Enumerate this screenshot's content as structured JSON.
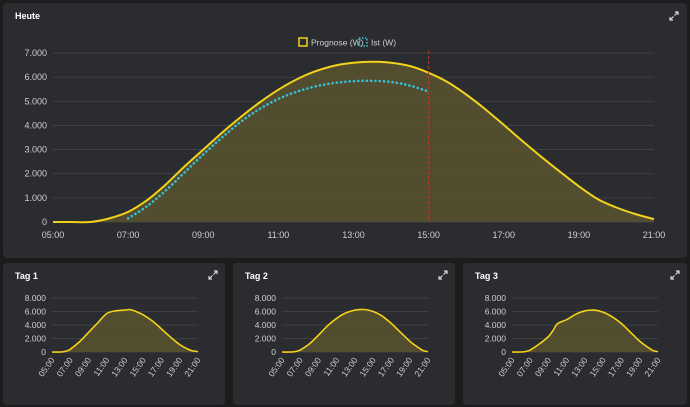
{
  "colors": {
    "background": "#1c1c1c",
    "card": "#2b2c2f",
    "forecast": "#f3d21b",
    "forecast_fill": "#5a5430",
    "actual": "#35c2d8",
    "now_line": "#c0392b",
    "grid": "#454649",
    "text": "#cfcfcf"
  },
  "icons": {
    "expand": "expand-arrows-icon"
  },
  "main": {
    "title": "Heute",
    "legend": [
      "Prognose (W)",
      "Ist (W)"
    ]
  },
  "small_cards": [
    {
      "title": "Tag 1"
    },
    {
      "title": "Tag 2"
    },
    {
      "title": "Tag 3"
    }
  ],
  "chart_data": [
    {
      "type": "area",
      "title": "Heute",
      "x_unit": "hour",
      "xlim": [
        5,
        21
      ],
      "x_ticks": [
        "05:00",
        "07:00",
        "09:00",
        "11:00",
        "13:00",
        "15:00",
        "17:00",
        "19:00",
        "21:00"
      ],
      "ylim": [
        0,
        7000
      ],
      "y_ticks": [
        "0",
        "1.000",
        "2.000",
        "3.000",
        "4.000",
        "5.000",
        "6.000",
        "7.000"
      ],
      "grid": true,
      "legend_position": "top-center",
      "now_marker": 15,
      "series": [
        {
          "name": "Prognose (W)",
          "style": "line-fill",
          "x": [
            5,
            5.5,
            6,
            6.5,
            7,
            7.5,
            8,
            8.5,
            9,
            9.5,
            10,
            10.5,
            11,
            11.5,
            12,
            12.5,
            13,
            13.5,
            14,
            14.5,
            15,
            15.5,
            16,
            16.5,
            17,
            17.5,
            18,
            18.5,
            19,
            19.5,
            20,
            20.5,
            21
          ],
          "y": [
            0,
            0,
            0,
            150,
            420,
            900,
            1550,
            2300,
            3000,
            3700,
            4350,
            4950,
            5480,
            5920,
            6250,
            6480,
            6600,
            6640,
            6600,
            6460,
            6180,
            5800,
            5280,
            4680,
            4020,
            3350,
            2700,
            2080,
            1480,
            950,
            600,
            330,
            120
          ]
        },
        {
          "name": "Ist (W)",
          "style": "dotted",
          "x": [
            7,
            7.5,
            8,
            8.5,
            9,
            9.5,
            10,
            10.5,
            11,
            11.5,
            12,
            12.5,
            13,
            13.5,
            14,
            14.5,
            15
          ],
          "y": [
            150,
            650,
            1300,
            2050,
            2800,
            3500,
            4150,
            4680,
            5100,
            5400,
            5620,
            5760,
            5830,
            5850,
            5800,
            5650,
            5400
          ]
        }
      ]
    },
    {
      "type": "area",
      "title": "Tag 1",
      "xlim": [
        5,
        21
      ],
      "x_ticks": [
        "05:00",
        "07:00",
        "09:00",
        "11:00",
        "13:00",
        "15:00",
        "17:00",
        "19:00",
        "21:00"
      ],
      "ylim": [
        0,
        8000
      ],
      "y_ticks": [
        "0",
        "2.000",
        "4.000",
        "6.000",
        "8.000"
      ],
      "grid": true,
      "series": [
        {
          "name": "",
          "x": [
            5,
            6,
            6.5,
            7,
            8,
            9,
            10,
            11,
            12,
            13,
            13.5,
            14,
            15,
            16,
            17,
            18,
            19,
            20,
            20.5,
            21
          ],
          "y": [
            0,
            0,
            100,
            400,
            1500,
            2900,
            4300,
            5700,
            6100,
            6200,
            6300,
            6100,
            5500,
            4600,
            3400,
            2200,
            1100,
            350,
            150,
            50
          ]
        }
      ]
    },
    {
      "type": "area",
      "title": "Tag 2",
      "xlim": [
        5,
        21
      ],
      "x_ticks": [
        "05:00",
        "07:00",
        "09:00",
        "11:00",
        "13:00",
        "15:00",
        "17:00",
        "19:00",
        "21:00"
      ],
      "ylim": [
        0,
        8000
      ],
      "y_ticks": [
        "0",
        "2.000",
        "4.000",
        "6.000",
        "8.000"
      ],
      "grid": true,
      "series": [
        {
          "name": "",
          "x": [
            5,
            6,
            6.5,
            7,
            8,
            9,
            10,
            11,
            12,
            13,
            14,
            15,
            16,
            17,
            18,
            19,
            20,
            20.5,
            21
          ],
          "y": [
            0,
            0,
            80,
            300,
            1200,
            2500,
            3900,
            5000,
            5800,
            6200,
            6300,
            6000,
            5300,
            4200,
            2900,
            1600,
            600,
            200,
            50
          ]
        }
      ]
    },
    {
      "type": "area",
      "title": "Tag 3",
      "xlim": [
        5,
        21
      ],
      "x_ticks": [
        "05:00",
        "07:00",
        "09:00",
        "11:00",
        "13:00",
        "15:00",
        "17:00",
        "19:00",
        "21:00"
      ],
      "ylim": [
        0,
        8000
      ],
      "y_ticks": [
        "0",
        "2.000",
        "4.000",
        "6.000",
        "8.000"
      ],
      "grid": true,
      "series": [
        {
          "name": "",
          "x": [
            5,
            6,
            6.5,
            7,
            8,
            9,
            9.5,
            10,
            11,
            12,
            13,
            14,
            15,
            16,
            17,
            18,
            19,
            20,
            20.5,
            21
          ],
          "y": [
            0,
            0,
            80,
            300,
            1200,
            2300,
            3200,
            4200,
            4800,
            5600,
            6100,
            6200,
            5900,
            5200,
            4200,
            2900,
            1600,
            600,
            200,
            50
          ]
        }
      ]
    }
  ]
}
